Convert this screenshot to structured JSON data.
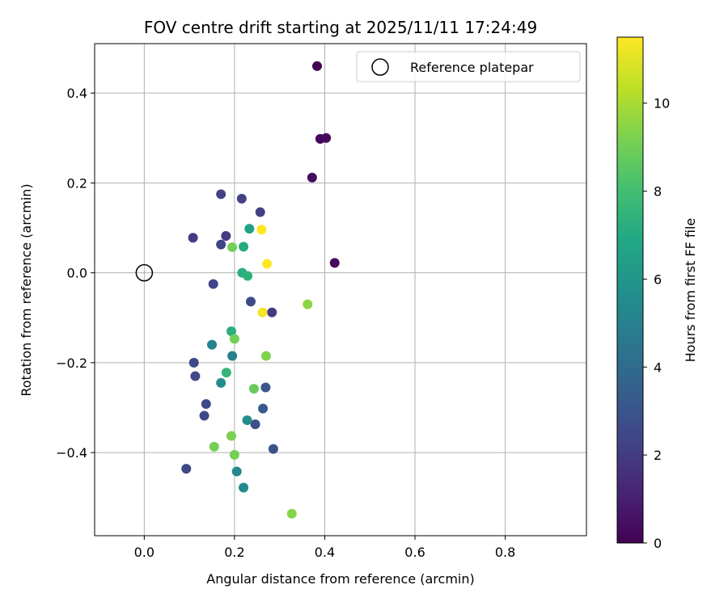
{
  "chart_data": {
    "type": "scatter",
    "title": "FOV centre drift starting at 2025/11/11 17:24:49",
    "xlabel": "Angular distance from reference (arcmin)",
    "ylabel": "Rotation from reference (arcmin)",
    "xlim": [
      -0.11,
      0.98
    ],
    "ylim": [
      -0.585,
      0.51
    ],
    "xticks": [
      0.0,
      0.2,
      0.4,
      0.6,
      0.8
    ],
    "xtick_labels": [
      "0.0",
      "0.2",
      "0.4",
      "0.6",
      "0.8"
    ],
    "yticks": [
      -0.4,
      -0.2,
      0.0,
      0.2,
      0.4
    ],
    "ytick_labels": [
      "−0.4",
      "−0.2",
      "0.0",
      "0.2",
      "0.4"
    ],
    "grid": true,
    "legend": {
      "position": "top-right",
      "entries": [
        {
          "label": "Reference platepar",
          "marker": "open-circle"
        }
      ]
    },
    "reference_point": {
      "x": 0.0,
      "y": 0.0,
      "label": "Reference platepar"
    },
    "colorbar": {
      "label": "Hours from first FF file",
      "range": [
        0,
        11.5
      ],
      "ticks": [
        0,
        2,
        4,
        6,
        8,
        10
      ],
      "tick_labels": [
        "0",
        "2",
        "4",
        "6",
        "8",
        "10"
      ],
      "colormap": "viridis"
    },
    "points": [
      {
        "x": 0.383,
        "y": 0.46,
        "hours": 0.0
      },
      {
        "x": 0.39,
        "y": 0.298,
        "hours": 0.2
      },
      {
        "x": 0.403,
        "y": 0.3,
        "hours": 0.3
      },
      {
        "x": 0.372,
        "y": 0.212,
        "hours": 0.4
      },
      {
        "x": 0.422,
        "y": 0.022,
        "hours": 0.3
      },
      {
        "x": 0.17,
        "y": 0.175,
        "hours": 2.3
      },
      {
        "x": 0.216,
        "y": 0.165,
        "hours": 2.2
      },
      {
        "x": 0.257,
        "y": 0.135,
        "hours": 2.2
      },
      {
        "x": 0.108,
        "y": 0.078,
        "hours": 2.0
      },
      {
        "x": 0.181,
        "y": 0.082,
        "hours": 2.0
      },
      {
        "x": 0.17,
        "y": 0.063,
        "hours": 2.3
      },
      {
        "x": 0.153,
        "y": -0.025,
        "hours": 2.4
      },
      {
        "x": 0.236,
        "y": -0.064,
        "hours": 2.6
      },
      {
        "x": 0.283,
        "y": -0.088,
        "hours": 2.0
      },
      {
        "x": 0.11,
        "y": -0.2,
        "hours": 2.6
      },
      {
        "x": 0.113,
        "y": -0.23,
        "hours": 2.5
      },
      {
        "x": 0.137,
        "y": -0.292,
        "hours": 2.5
      },
      {
        "x": 0.133,
        "y": -0.318,
        "hours": 2.5
      },
      {
        "x": 0.093,
        "y": -0.436,
        "hours": 2.5
      },
      {
        "x": 0.269,
        "y": -0.255,
        "hours": 3.1
      },
      {
        "x": 0.263,
        "y": -0.302,
        "hours": 3.2
      },
      {
        "x": 0.246,
        "y": -0.337,
        "hours": 2.8
      },
      {
        "x": 0.286,
        "y": -0.392,
        "hours": 3.0
      },
      {
        "x": 0.15,
        "y": -0.16,
        "hours": 5.1
      },
      {
        "x": 0.195,
        "y": -0.185,
        "hours": 5.1
      },
      {
        "x": 0.17,
        "y": -0.245,
        "hours": 5.6
      },
      {
        "x": 0.228,
        "y": -0.328,
        "hours": 5.6
      },
      {
        "x": 0.205,
        "y": -0.442,
        "hours": 5.3
      },
      {
        "x": 0.22,
        "y": -0.478,
        "hours": 5.4
      },
      {
        "x": 0.233,
        "y": 0.098,
        "hours": 6.6
      },
      {
        "x": 0.22,
        "y": 0.058,
        "hours": 7.0
      },
      {
        "x": 0.217,
        "y": 0.0,
        "hours": 7.2
      },
      {
        "x": 0.229,
        "y": -0.007,
        "hours": 7.4
      },
      {
        "x": 0.193,
        "y": -0.13,
        "hours": 7.2
      },
      {
        "x": 0.182,
        "y": -0.222,
        "hours": 7.5
      },
      {
        "x": 0.195,
        "y": 0.057,
        "hours": 9.0
      },
      {
        "x": 0.2,
        "y": -0.147,
        "hours": 9.0
      },
      {
        "x": 0.27,
        "y": -0.185,
        "hours": 9.3
      },
      {
        "x": 0.243,
        "y": -0.258,
        "hours": 8.8
      },
      {
        "x": 0.193,
        "y": -0.363,
        "hours": 9.2
      },
      {
        "x": 0.155,
        "y": -0.387,
        "hours": 9.1
      },
      {
        "x": 0.2,
        "y": -0.405,
        "hours": 9.1
      },
      {
        "x": 0.362,
        "y": -0.07,
        "hours": 9.5
      },
      {
        "x": 0.327,
        "y": -0.536,
        "hours": 9.4
      },
      {
        "x": 0.26,
        "y": 0.096,
        "hours": 11.5
      },
      {
        "x": 0.272,
        "y": 0.02,
        "hours": 11.5
      },
      {
        "x": 0.262,
        "y": -0.088,
        "hours": 11.3
      }
    ]
  }
}
